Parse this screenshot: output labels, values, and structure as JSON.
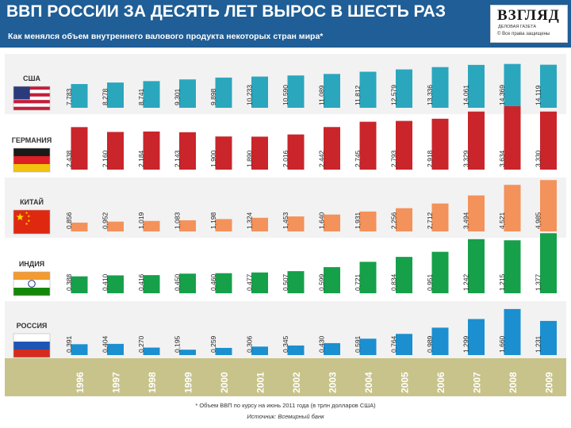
{
  "header": {
    "title": "ВВП РОССИИ ЗА ДЕСЯТЬ ЛЕТ ВЫРОС В ШЕСТЬ РАЗ",
    "subtitle": "Как менялся объем внутреннего валового продукта некоторых стран мира*"
  },
  "logo": {
    "name": "ВЗГЛЯД",
    "tagline": "ДЕЛОВАЯ ГАЗЕТА",
    "copyright": "© Все права защищены"
  },
  "footnote": "* Объем ВВП по курсу на июнь 2011 года (в трлн долларов США)",
  "source": "Источник: Всемирный банк",
  "chart_data": {
    "type": "bar",
    "categories": [
      "1996",
      "1997",
      "1998",
      "1999",
      "2000",
      "2001",
      "2002",
      "2003",
      "2004",
      "2005",
      "2006",
      "2007",
      "2008",
      "2009"
    ],
    "series": [
      {
        "name": "США",
        "flag": "usa-flag",
        "color": "#2aa7bd",
        "values": [
          7.783,
          8.278,
          8.741,
          9.301,
          9.898,
          10.233,
          10.59,
          11.089,
          11.812,
          12.579,
          13.336,
          14.061,
          14.369,
          14.119
        ],
        "labels": [
          "7,783",
          "8,278",
          "8,741",
          "9,301",
          "9,898",
          "10,233",
          "10,590",
          "11,089",
          "11,812",
          "12,579",
          "13,336",
          "14,061",
          "14,369",
          "14,119"
        ]
      },
      {
        "name": "ГЕРМАНИЯ",
        "flag": "germany-flag",
        "color": "#c9252b",
        "values": [
          2.438,
          2.16,
          2.184,
          2.143,
          1.9,
          1.89,
          2.016,
          2.442,
          2.745,
          2.793,
          2.918,
          3.329,
          3.634,
          3.33
        ],
        "labels": [
          "2,438",
          "2,160",
          "2,184",
          "2,143",
          "1,900",
          "1,890",
          "2,016",
          "2,442",
          "2,745",
          "2,793",
          "2,918",
          "3,329",
          "3,634",
          "3,330"
        ]
      },
      {
        "name": "КИТАЙ",
        "flag": "china-flag",
        "color": "#f3925a",
        "values": [
          0.856,
          0.952,
          1.019,
          1.083,
          1.198,
          1.324,
          1.453,
          1.64,
          1.931,
          2.256,
          2.712,
          3.494,
          4.521,
          4.985
        ],
        "labels": [
          "0,856",
          "0,952",
          "1,019",
          "1,083",
          "1,198",
          "1,324",
          "1,453",
          "1,640",
          "1,931",
          "2,256",
          "2,712",
          "3,494",
          "4,521",
          "4,985"
        ]
      },
      {
        "name": "ИНДИЯ",
        "flag": "india-flag",
        "color": "#16a04a",
        "values": [
          0.388,
          0.41,
          0.416,
          0.45,
          0.46,
          0.477,
          0.507,
          0.599,
          0.721,
          0.834,
          0.951,
          1.242,
          1.215,
          1.377
        ],
        "labels": [
          "0,388",
          "0,410",
          "0,416",
          "0,450",
          "0,460",
          "0,477",
          "0,507",
          "0,599",
          "0,721",
          "0,834",
          "0,951",
          "1,242",
          "1,215",
          "1,377"
        ]
      },
      {
        "name": "РОССИЯ",
        "flag": "russia-flag",
        "color": "#1b8fd0",
        "values": [
          0.391,
          0.404,
          0.27,
          0.195,
          0.259,
          0.306,
          0.345,
          0.43,
          0.591,
          0.764,
          0.989,
          1.299,
          1.66,
          1.231
        ],
        "labels": [
          "0,391",
          "0,404",
          "0,270",
          "0,195",
          "0,259",
          "0,306",
          "0,345",
          "0,430",
          "0,591",
          "0,764",
          "0,989",
          "1,299",
          "1,660",
          "1,231"
        ]
      }
    ]
  }
}
